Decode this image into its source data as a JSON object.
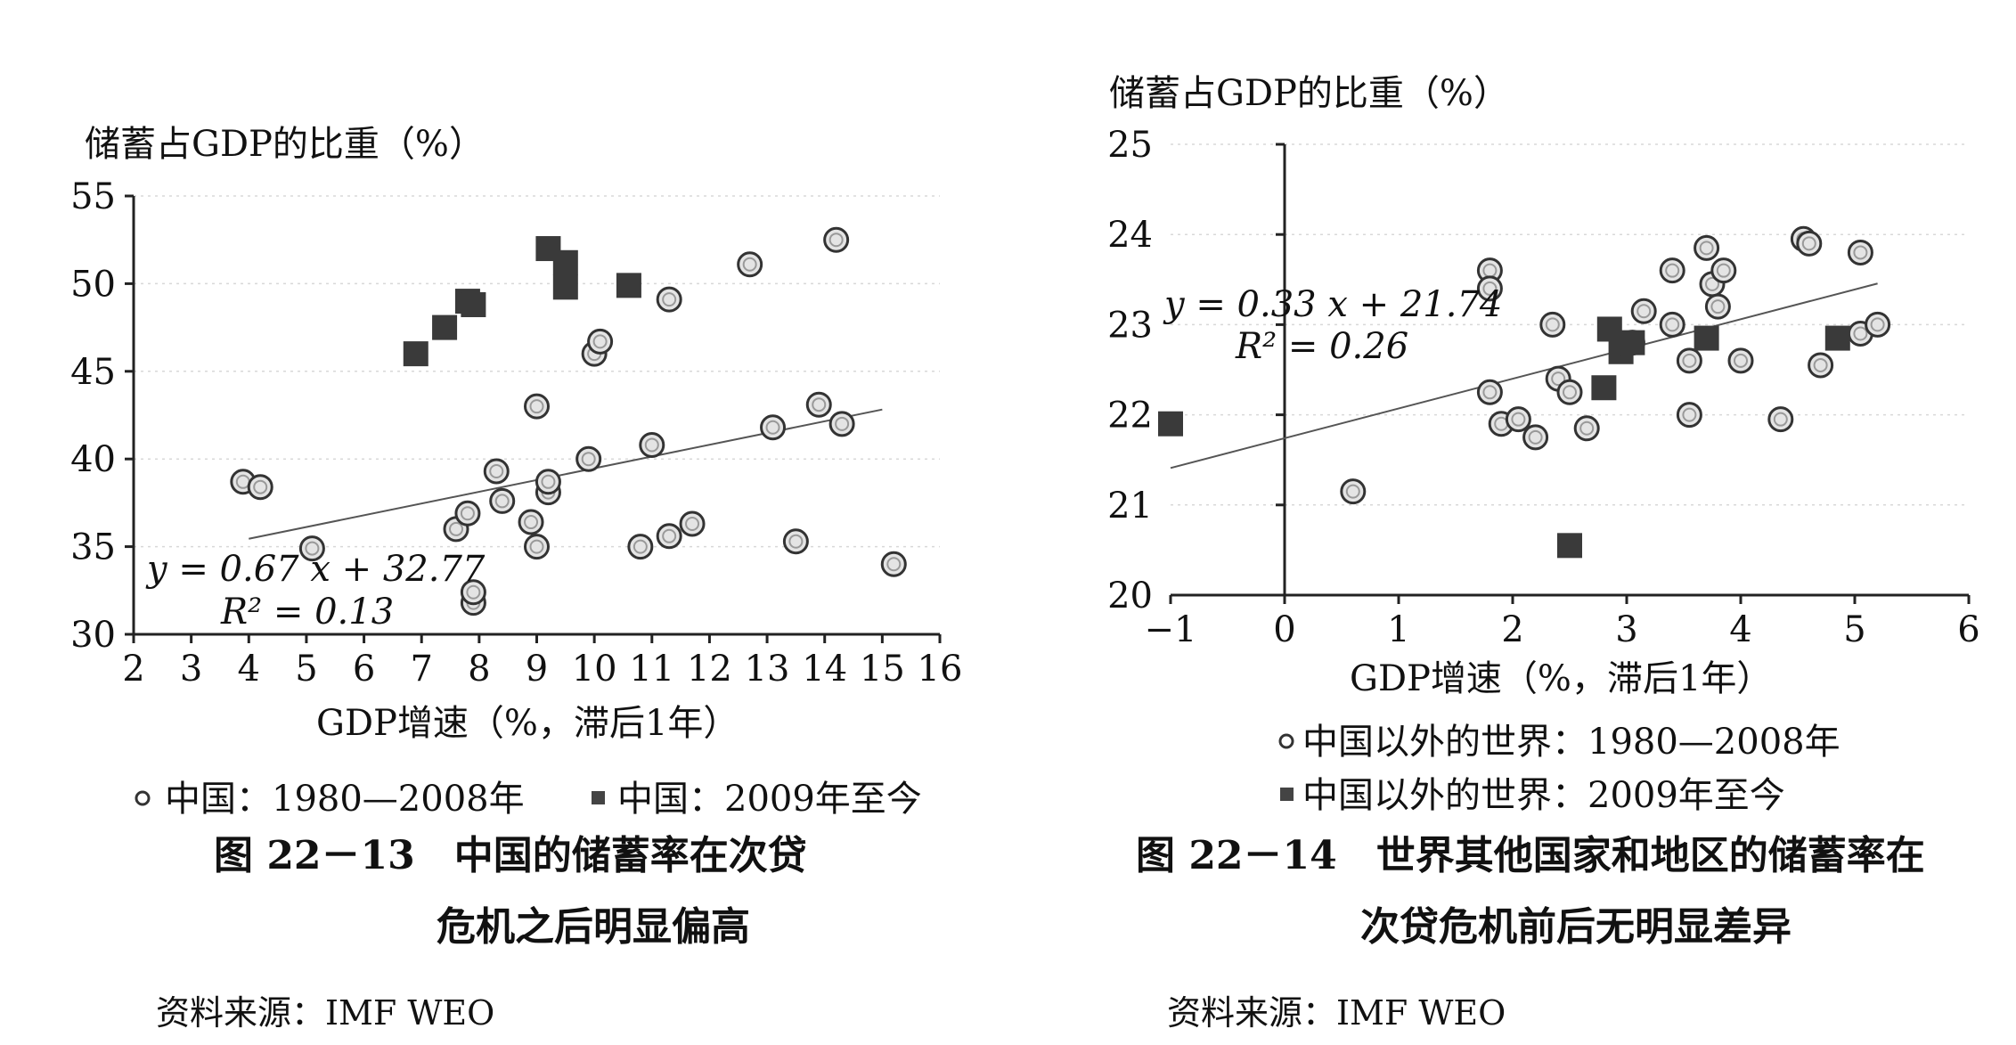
{
  "chart_data": [
    {
      "type": "scatter",
      "ylabel": "储蓄占GDP的比重（%）",
      "xlabel": "GDP增速（%，滞后1年）",
      "xlim": [
        2,
        16
      ],
      "ylim": [
        30,
        55
      ],
      "xticks": [
        "2",
        "3",
        "4",
        "5",
        "6",
        "7",
        "8",
        "9",
        "10",
        "11",
        "12",
        "13",
        "14",
        "15",
        "16"
      ],
      "yticks": [
        "30",
        "35",
        "40",
        "45",
        "50",
        "55"
      ],
      "equation": "y = 0.67 x + 32.77",
      "r2": "R² = 0.13",
      "trendline": {
        "slope": 0.67,
        "intercept": 32.77,
        "x_range": [
          4.0,
          15.0
        ]
      },
      "legend": [
        {
          "marker": "circle",
          "label": "中国：1980—2008年"
        },
        {
          "marker": "square",
          "label": "中国：2009年至今"
        }
      ],
      "series": [
        {
          "name": "中国：1980—2008年",
          "marker": "circle",
          "points": [
            [
              3.9,
              38.7
            ],
            [
              4.2,
              38.4
            ],
            [
              5.1,
              34.9
            ],
            [
              7.6,
              36.0
            ],
            [
              7.8,
              36.9
            ],
            [
              7.9,
              31.8
            ],
            [
              7.9,
              32.4
            ],
            [
              8.3,
              39.3
            ],
            [
              8.4,
              37.6
            ],
            [
              8.9,
              36.4
            ],
            [
              9.0,
              35.0
            ],
            [
              9.0,
              43.0
            ],
            [
              9.2,
              38.1
            ],
            [
              9.2,
              38.7
            ],
            [
              9.9,
              40.0
            ],
            [
              10.0,
              46.0
            ],
            [
              10.1,
              46.7
            ],
            [
              10.8,
              35.0
            ],
            [
              11.0,
              40.8
            ],
            [
              11.3,
              35.6
            ],
            [
              11.3,
              49.1
            ],
            [
              11.7,
              36.3
            ],
            [
              12.7,
              51.1
            ],
            [
              13.1,
              41.8
            ],
            [
              13.5,
              35.3
            ],
            [
              13.9,
              43.1
            ],
            [
              14.2,
              52.5
            ],
            [
              14.3,
              42.0
            ],
            [
              15.2,
              34.0
            ]
          ]
        },
        {
          "name": "中国：2009年至今",
          "marker": "square",
          "points": [
            [
              6.9,
              46.0
            ],
            [
              7.4,
              47.5
            ],
            [
              7.8,
              49.0
            ],
            [
              7.9,
              48.8
            ],
            [
              9.2,
              52.0
            ],
            [
              9.5,
              51.2
            ],
            [
              9.5,
              49.8
            ],
            [
              10.6,
              49.9
            ]
          ]
        }
      ]
    },
    {
      "type": "scatter",
      "ylabel": "储蓄占GDP的比重（%）",
      "xlabel": "GDP增速（%，滞后1年）",
      "xlim": [
        -1,
        6
      ],
      "ylim": [
        20,
        25
      ],
      "xticks": [
        "−1",
        "0",
        "1",
        "2",
        "3",
        "4",
        "5",
        "6"
      ],
      "yticks": [
        "20",
        "21",
        "22",
        "23",
        "24",
        "25"
      ],
      "equation": "y = 0.33 x + 21.74",
      "r2": "R² = 0.26",
      "trendline": {
        "slope": 0.33,
        "intercept": 21.74,
        "x_range": [
          -1.0,
          5.2
        ]
      },
      "legend": [
        {
          "marker": "circle",
          "label": "中国以外的世界：1980—2008年"
        },
        {
          "marker": "square",
          "label": "中国以外的世界：2009年至今"
        }
      ],
      "series": [
        {
          "name": "中国以外的世界：1980—2008年",
          "marker": "circle",
          "points": [
            [
              0.6,
              21.15
            ],
            [
              1.8,
              23.6
            ],
            [
              1.8,
              23.4
            ],
            [
              1.8,
              22.25
            ],
            [
              1.9,
              21.9
            ],
            [
              2.05,
              21.95
            ],
            [
              2.2,
              21.75
            ],
            [
              2.35,
              23.0
            ],
            [
              2.4,
              22.4
            ],
            [
              2.5,
              22.25
            ],
            [
              2.65,
              21.85
            ],
            [
              3.05,
              22.8
            ],
            [
              3.15,
              23.15
            ],
            [
              3.4,
              23.6
            ],
            [
              3.4,
              23.0
            ],
            [
              3.55,
              22.6
            ],
            [
              3.55,
              22.0
            ],
            [
              3.7,
              23.85
            ],
            [
              3.75,
              23.45
            ],
            [
              3.8,
              23.2
            ],
            [
              3.85,
              23.6
            ],
            [
              4.0,
              22.6
            ],
            [
              4.35,
              21.95
            ],
            [
              4.55,
              23.95
            ],
            [
              4.6,
              23.9
            ],
            [
              4.7,
              22.55
            ],
            [
              5.05,
              23.8
            ],
            [
              5.05,
              22.9
            ],
            [
              5.2,
              23.0
            ]
          ]
        },
        {
          "name": "中国以外的世界：2009年至今",
          "marker": "square",
          "points": [
            [
              -1.0,
              21.9
            ],
            [
              2.5,
              20.55
            ],
            [
              2.8,
              22.3
            ],
            [
              2.85,
              22.95
            ],
            [
              2.95,
              22.7
            ],
            [
              3.05,
              22.8
            ],
            [
              3.7,
              22.85
            ],
            [
              4.85,
              22.85
            ]
          ]
        }
      ]
    }
  ],
  "captions": [
    {
      "line1": "图 22－13　中国的储蓄率在次贷",
      "line2": "危机之后明显偏高",
      "source": "资料来源：IMF WEO"
    },
    {
      "line1": "图 22－14　世界其他国家和地区的储蓄率在",
      "line2": "次贷危机前后无明显差异",
      "source": "资料来源：IMF WEO"
    }
  ]
}
